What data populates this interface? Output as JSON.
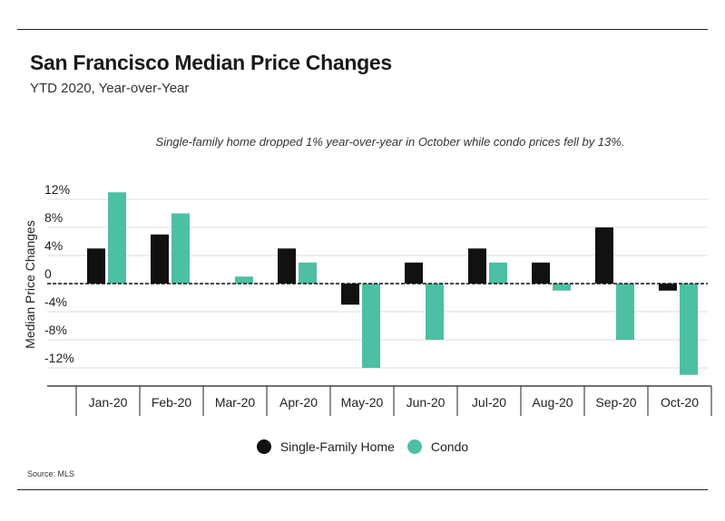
{
  "header": {
    "title": "San Francisco Median Price Changes",
    "subtitle": "YTD 2020, Year-over-Year"
  },
  "annotation": "Single-family home dropped 1% year-over-year in October while condo prices fell by 13%.",
  "source": "Source:  MLS",
  "colors": {
    "single_family": "#111111",
    "condo": "#4dbfa3",
    "grid": "#dddddd",
    "axis": "#222222"
  },
  "chart_data": {
    "type": "bar",
    "title": "San Francisco Median Price Changes",
    "subtitle": "YTD 2020, Year-over-Year",
    "xlabel": "",
    "ylabel": "Median Price Changes",
    "categories": [
      "Jan-20",
      "Feb-20",
      "Mar-20",
      "Apr-20",
      "May-20",
      "Jun-20",
      "Jul-20",
      "Aug-20",
      "Sep-20",
      "Oct-20"
    ],
    "series": [
      {
        "name": "Single-Family Home",
        "values": [
          5,
          7,
          0,
          5,
          -3,
          3,
          5,
          3,
          8,
          -1
        ]
      },
      {
        "name": "Condo",
        "values": [
          13,
          10,
          1,
          3,
          -12,
          -8,
          3,
          -1,
          -8,
          -13
        ]
      }
    ],
    "yticks": [
      12,
      8,
      4,
      0,
      -4,
      -8,
      -12
    ],
    "ytick_labels": [
      "12%",
      "8%",
      "4%",
      "0",
      "-4%",
      "-8%",
      "-12%"
    ],
    "ylim": [
      -14,
      14
    ],
    "grid": true,
    "zero_line": "dashed",
    "legend": "bottom-center"
  }
}
